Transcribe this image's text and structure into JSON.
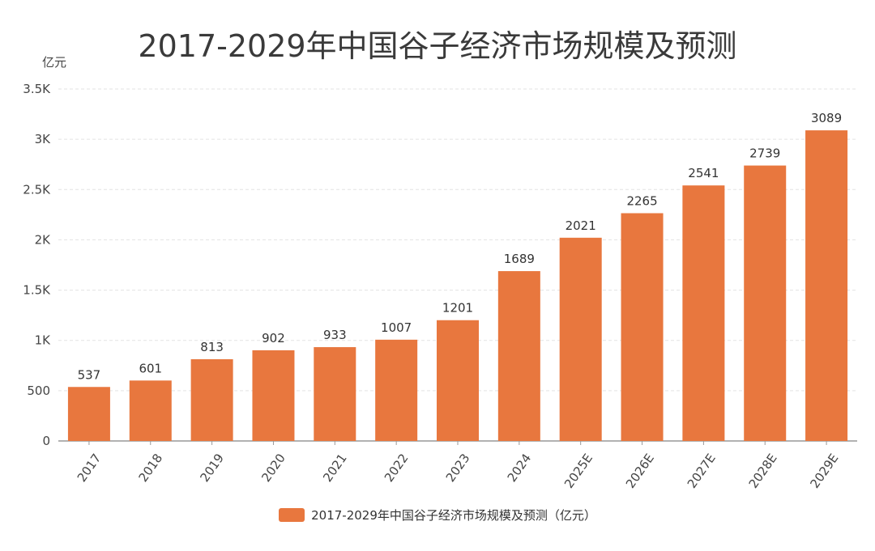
{
  "title": "2017-2029年中国谷子经济市场规模及预测",
  "unit_label": "亿元",
  "colors": {
    "bar": "#E8773E",
    "grid": "#e3e3e3",
    "axis": "#999999",
    "text": "#333333"
  },
  "legend": {
    "label": "2017-2029年中国谷子经济市场规模及预测（亿元）",
    "color": "#E8773E"
  },
  "chart_data": {
    "type": "bar",
    "title": "2017-2029年中国谷子经济市场规模及预测",
    "ylabel": "亿元",
    "categories": [
      "2017",
      "2018",
      "2019",
      "2020",
      "2021",
      "2022",
      "2023",
      "2024",
      "2025E",
      "2026E",
      "2027E",
      "2028E",
      "2029E"
    ],
    "series": [
      {
        "name": "2017-2029年中国谷子经济市场规模及预测（亿元）",
        "values": [
          537,
          601,
          813,
          902,
          933,
          1007,
          1201,
          1689,
          2021,
          2265,
          2541,
          2739,
          3089
        ]
      }
    ],
    "ylim": [
      0,
      3500
    ],
    "yticks": [
      0,
      500,
      1000,
      1500,
      2000,
      2500,
      3000,
      3500
    ],
    "ytick_labels": [
      "0",
      "500",
      "1K",
      "1.5K",
      "2K",
      "2.5K",
      "3K",
      "3.5K"
    ],
    "grid": true,
    "legend_position": "bottom"
  }
}
